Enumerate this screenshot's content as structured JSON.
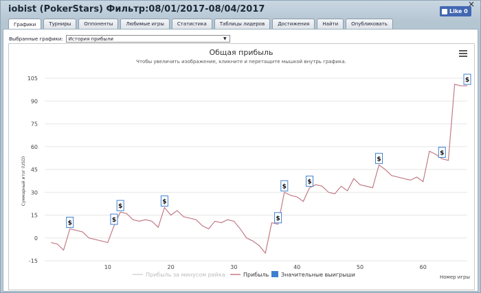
{
  "window": {
    "title": "iobist (PokerStars) Фильтр:08/01/2017-08/04/2017",
    "close_glyph": "×"
  },
  "like_button": {
    "label": "Like 0"
  },
  "tabs": [
    {
      "label": "Графики",
      "active": true
    },
    {
      "label": "Турниры"
    },
    {
      "label": "Оппоненты"
    },
    {
      "label": "Любимые игры"
    },
    {
      "label": "Статистика"
    },
    {
      "label": "Таблицы лидеров"
    },
    {
      "label": "Достижения"
    },
    {
      "label": "Найти"
    },
    {
      "label": "Опубликовать"
    }
  ],
  "selector": {
    "label": "Выбранные графики:",
    "value": "История прибыли"
  },
  "chart_data": {
    "type": "line",
    "title": "Общая прибыль",
    "subtitle": "Чтобы увеличить изображение, кликните и перетащите мышкой внутрь графика.",
    "ylabel": "Суммарный итог (USD)",
    "xlabel": "Номер игры",
    "ylim": [
      -15,
      105
    ],
    "yticks": [
      -15,
      0,
      15,
      30,
      45,
      60,
      75,
      90,
      105
    ],
    "xlim": [
      0,
      67
    ],
    "xticks": [
      10,
      20,
      30,
      40,
      50,
      60
    ],
    "grid": true,
    "legend_position": "bottom",
    "legend": [
      "Прибыль за минусом рейка",
      "Прибыль",
      "Значительные выигрыши"
    ],
    "colors": {
      "profit": "#c27a86",
      "rake": "#d5d5d5",
      "significant": "#3d7fd0"
    },
    "series": [
      {
        "name": "Прибыль",
        "x": [
          1,
          2,
          3,
          4,
          5,
          6,
          7,
          8,
          9,
          10,
          11,
          12,
          13,
          14,
          15,
          16,
          17,
          18,
          19,
          20,
          21,
          22,
          23,
          24,
          25,
          26,
          27,
          28,
          29,
          30,
          31,
          32,
          33,
          34,
          35,
          36,
          37,
          38,
          39,
          40,
          41,
          42,
          43,
          44,
          45,
          46,
          47,
          48,
          49,
          50,
          51,
          52,
          53,
          54,
          55,
          56,
          57,
          58,
          59,
          60,
          61,
          62,
          63,
          64,
          65,
          66,
          67
        ],
        "y": [
          -3,
          -4,
          -8,
          6,
          5,
          4,
          0,
          -1,
          -2,
          -3,
          8,
          17,
          16,
          12,
          11,
          12,
          11,
          7,
          20,
          15,
          18,
          14,
          13,
          12,
          8,
          6,
          11,
          10,
          12,
          11,
          6,
          0,
          -2,
          -5,
          -10,
          10,
          9,
          30,
          28,
          27,
          24,
          33,
          35,
          34,
          30,
          29,
          34,
          31,
          39,
          35,
          34,
          33,
          48,
          45,
          41,
          40,
          39,
          38,
          40,
          37,
          57,
          55,
          52,
          51,
          101,
          100,
          100
        ]
      }
    ],
    "significant_wins_x": [
      4,
      11,
      12,
      19,
      37,
      38,
      42,
      53,
      63,
      67
    ],
    "significant_wins_label": "$"
  }
}
